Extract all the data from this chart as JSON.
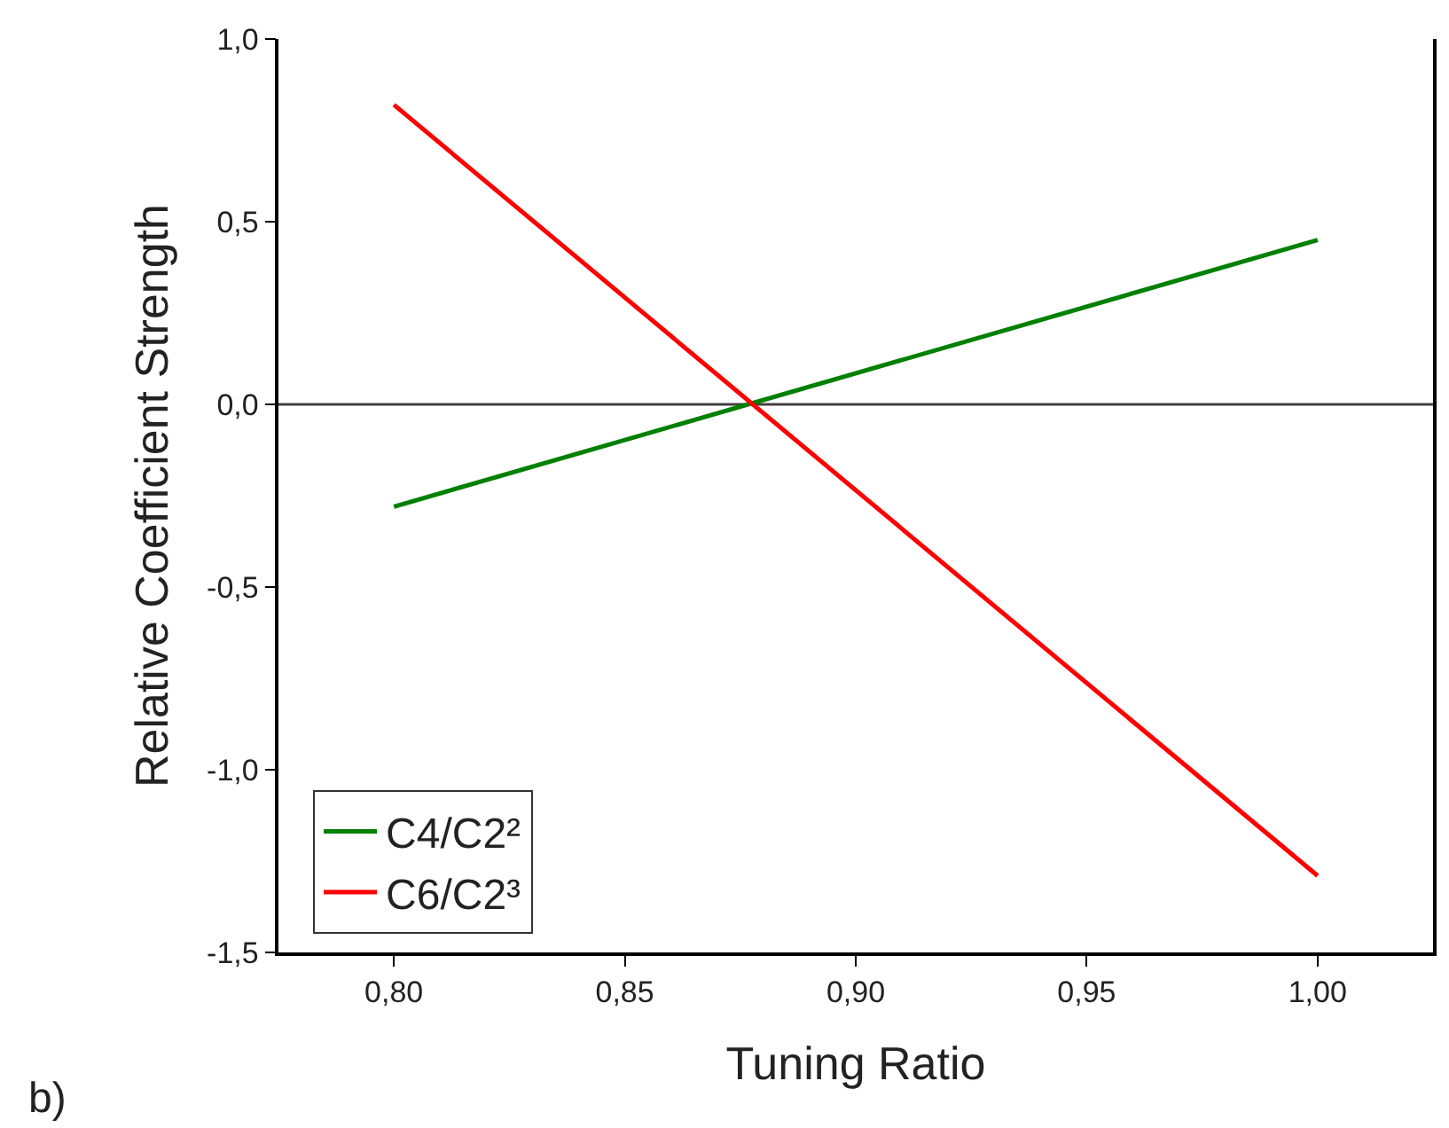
{
  "chart_data": {
    "type": "line",
    "xlabel": "Tuning Ratio",
    "ylabel": "Relative Coefficient Strength",
    "x": [
      0.8,
      1.0
    ],
    "series": [
      {
        "name": "C4/C2²",
        "color": "#008000",
        "values": [
          -0.28,
          0.45
        ]
      },
      {
        "name": "C6/C2³",
        "color": "#ff0000",
        "values": [
          0.82,
          -1.29
        ]
      }
    ],
    "xlim": [
      0.775,
      1.025
    ],
    "xticks": [
      {
        "value": 0.8,
        "label": "0,80"
      },
      {
        "value": 0.85,
        "label": "0,85"
      },
      {
        "value": 0.9,
        "label": "0,90"
      },
      {
        "value": 0.95,
        "label": "0,95"
      },
      {
        "value": 1.0,
        "label": "1,00"
      }
    ],
    "ylim": [
      -1.5,
      1.0
    ],
    "yticks": [
      {
        "value": -1.5,
        "label": "-1,5"
      },
      {
        "value": -1.0,
        "label": "-1,0"
      },
      {
        "value": -0.5,
        "label": "-0,5"
      },
      {
        "value": 0.0,
        "label": "0,0"
      },
      {
        "value": 0.5,
        "label": "0,5"
      },
      {
        "value": 1.0,
        "label": "1,0"
      }
    ],
    "ref_lines": [
      {
        "axis": "y",
        "value": 0,
        "color": "#404040"
      }
    ],
    "annotations": [
      "b)"
    ],
    "legend": "bottom left",
    "grid": false,
    "marker": "none",
    "line_style": "solid"
  }
}
